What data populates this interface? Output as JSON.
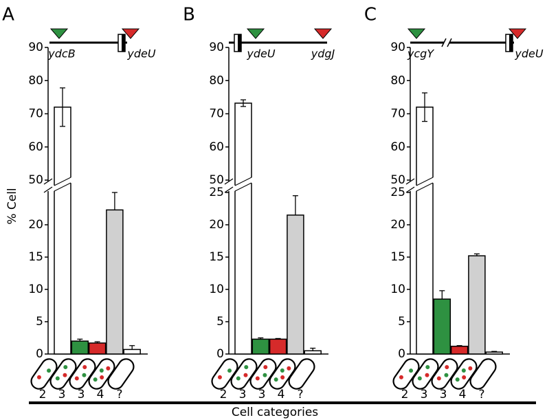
{
  "figure": {
    "ylabel": "% Cell",
    "xlabel": "Cell categories"
  },
  "chart_data": [
    {
      "type": "bar",
      "panel_label": "A",
      "genes": [
        "ydcB",
        "ydeU"
      ],
      "categories": [
        "2",
        "3",
        "3",
        "4",
        "?"
      ],
      "category_colors": [
        "#000000",
        "#2e9141",
        "#d62a2a",
        "#000000",
        "#000000"
      ],
      "values": [
        72,
        2,
        1.7,
        22.3,
        0.7
      ],
      "errors": [
        5.8,
        0.3,
        0.2,
        2.7,
        0.6
      ],
      "colors": [
        "#ffffff",
        "#2e9141",
        "#d62a2a",
        "#d0d0d0",
        "#ffffff"
      ],
      "ylim": [
        0,
        90
      ],
      "ybreak": [
        25,
        50
      ],
      "yticks": [
        0,
        5,
        10,
        15,
        20,
        50,
        60,
        70,
        80,
        90
      ]
    },
    {
      "type": "bar",
      "panel_label": "B",
      "genes": [
        "ydeU",
        "ydgJ"
      ],
      "categories": [
        "2",
        "3",
        "3",
        "4",
        "?"
      ],
      "category_colors": [
        "#000000",
        "#2e9141",
        "#d62a2a",
        "#000000",
        "#000000"
      ],
      "values": [
        73.2,
        2.3,
        2.3,
        21.5,
        0.5
      ],
      "errors": [
        1,
        0.2,
        0.1,
        3,
        0.4
      ],
      "colors": [
        "#ffffff",
        "#2e9141",
        "#d62a2a",
        "#d0d0d0",
        "#ffffff"
      ],
      "ylim": [
        0,
        90
      ],
      "ybreak": [
        25,
        50
      ],
      "yticks": [
        0,
        5,
        10,
        15,
        20,
        25,
        50,
        60,
        70,
        80,
        90
      ]
    },
    {
      "type": "bar",
      "panel_label": "C",
      "genes": [
        "ycgY",
        "ydeU"
      ],
      "categories": [
        "2",
        "3",
        "3",
        "4",
        "?"
      ],
      "category_colors": [
        "#000000",
        "#2e9141",
        "#d62a2a",
        "#000000",
        "#000000"
      ],
      "values": [
        72,
        8.5,
        1.2,
        15.2,
        0.3
      ],
      "errors": [
        4.3,
        1.3,
        0.1,
        0.3,
        0.1
      ],
      "colors": [
        "#ffffff",
        "#2e9141",
        "#d62a2a",
        "#d0d0d0",
        "#ffffff"
      ],
      "ylim": [
        0,
        90
      ],
      "ybreak": [
        25,
        50
      ],
      "yticks": [
        0,
        5,
        10,
        15,
        20,
        25,
        50,
        60,
        70,
        80,
        90
      ]
    }
  ]
}
